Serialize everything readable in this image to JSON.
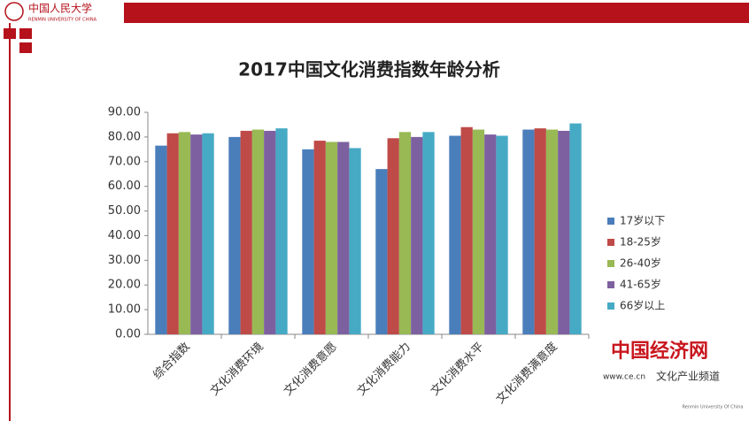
{
  "header": {
    "logo_cn": "中国人民大学",
    "logo_en": "RENMIN UNIVERSITY OF CHINA"
  },
  "watermark": {
    "brand": "中国经济网",
    "url": "www.ce.cn",
    "channel": "文化产业频道",
    "footer": "Renmin University Of China"
  },
  "chart_data": {
    "type": "bar",
    "title": "2017中国文化消费指数年龄分析",
    "categories": [
      "综合指数",
      "文化消费环境",
      "文化消费意愿",
      "文化消费能力",
      "文化消费水平",
      "文化消费满意度"
    ],
    "series": [
      {
        "name": "17岁以下",
        "color": "#4a7ebb",
        "values": [
          76.5,
          80,
          75,
          67,
          80.5,
          83
        ]
      },
      {
        "name": "18-25岁",
        "color": "#be4b48",
        "values": [
          81.5,
          82.5,
          78.5,
          79.5,
          84,
          83.5
        ]
      },
      {
        "name": "26-40岁",
        "color": "#98b954",
        "values": [
          82,
          83,
          78,
          82,
          83,
          83
        ]
      },
      {
        "name": "41-65岁",
        "color": "#7d60a0",
        "values": [
          81,
          82.5,
          78,
          80,
          81,
          82.5
        ]
      },
      {
        "name": "66岁以上",
        "color": "#46aac5",
        "values": [
          81.5,
          83.5,
          75.5,
          82,
          80.5,
          85.5
        ]
      }
    ],
    "ylim": [
      0,
      90
    ],
    "yticks": [
      {
        "value": 0,
        "label": "0.00"
      },
      {
        "value": 10,
        "label": "10.00"
      },
      {
        "value": 20,
        "label": "20.00"
      },
      {
        "value": 30,
        "label": "30.00"
      },
      {
        "value": 40,
        "label": "40.00"
      },
      {
        "value": 50,
        "label": "50.00"
      },
      {
        "value": 60,
        "label": "60.00"
      },
      {
        "value": 70,
        "label": "70.00"
      },
      {
        "value": 80,
        "label": "80.00"
      },
      {
        "value": 90,
        "label": "90.00"
      }
    ],
    "legend": "right"
  }
}
